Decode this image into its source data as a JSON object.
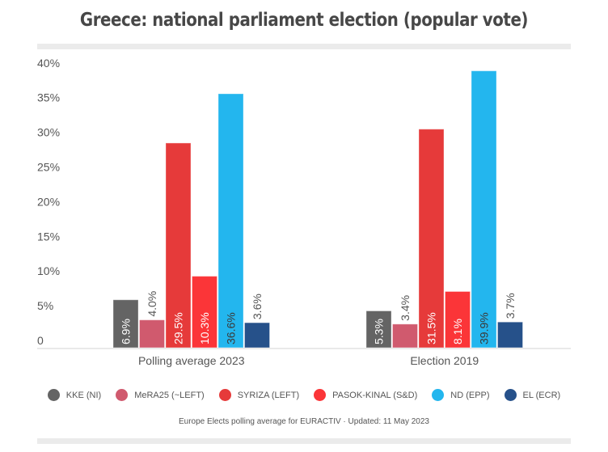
{
  "title": "Greece: national parliament election (popular vote)",
  "source": "Europe Elects polling average for EURACTIV · Updated: 11 May 2023",
  "chart_data": {
    "type": "bar",
    "title": "Greece: national parliament election (popular vote)",
    "xlabel": "",
    "ylabel": "",
    "ylim": [
      0,
      40
    ],
    "yticks": [
      "0",
      "5%",
      "10%",
      "15%",
      "20%",
      "25%",
      "30%",
      "35%",
      "40%"
    ],
    "ytick_values": [
      0,
      5,
      10,
      15,
      20,
      25,
      30,
      35,
      40
    ],
    "grid": false,
    "legend_position": "bottom",
    "categories": [
      "Polling average 2023",
      "Election 2019"
    ],
    "series": [
      {
        "name": "KKE (NI)",
        "color": "#646464",
        "label_color": "#ffffff",
        "values": [
          6.9,
          5.3
        ],
        "labels": [
          "6.9%",
          "5.3%"
        ]
      },
      {
        "name": "MeRA25 (~LEFT)",
        "color": "#d05a6e",
        "label_color": "#555555",
        "values": [
          4.0,
          3.4
        ],
        "labels": [
          "4.0%",
          "3.4%"
        ]
      },
      {
        "name": "SYRIZA (LEFT)",
        "color": "#e63a3a",
        "label_color": "#ffffff",
        "values": [
          29.5,
          31.5
        ],
        "labels": [
          "29.5%",
          "31.5%"
        ]
      },
      {
        "name": "PASOK-KINAL (S&D)",
        "color": "#fb3538",
        "label_color": "#ffffff",
        "values": [
          10.3,
          8.1
        ],
        "labels": [
          "10.3%",
          "8.1%"
        ]
      },
      {
        "name": "ND (EPP)",
        "color": "#23b6ee",
        "label_color": "#3a3a3a",
        "values": [
          36.6,
          39.9
        ],
        "labels": [
          "36.6%",
          "39.9%"
        ]
      },
      {
        "name": "EL (ECR)",
        "color": "#26518a",
        "label_color": "#555555",
        "values": [
          3.6,
          3.7
        ],
        "labels": [
          "3.6%",
          "3.7%"
        ]
      }
    ]
  }
}
